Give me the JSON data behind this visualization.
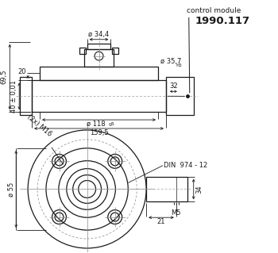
{
  "bg_color": "#ffffff",
  "line_color": "#1a1a1a",
  "annotations": {
    "control_module": "control module",
    "part_number": "1990.117",
    "din": "DIN  974 - 12",
    "m16": "(2x) M16",
    "m5": "M5",
    "dim_34_4": "ø 34,4",
    "dim_35_7": "ø 35,7",
    "h5": "h5",
    "dim_118": "ø 118",
    "g5": "g5",
    "dim_159_5": "159,5",
    "dim_69_5": "69,5",
    "dim_40": "40 ± 0,01",
    "dim_20": "20",
    "dim_32": "32",
    "dim_55": "ø 55",
    "dim_21": "21",
    "dim_34": "34"
  }
}
